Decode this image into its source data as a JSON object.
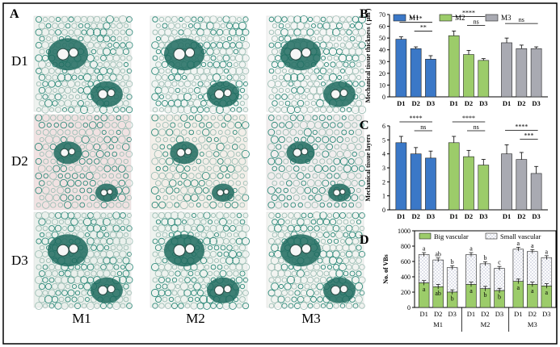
{
  "figure": {
    "panel_letters": [
      "A",
      "B",
      "C",
      "D"
    ],
    "rows": [
      "D1",
      "D2",
      "D3"
    ],
    "cols": [
      "M1",
      "M2",
      "M3"
    ]
  },
  "colors": {
    "M1": "#3b78c7",
    "M2": "#9ccc6a",
    "M3": "#a9aab2",
    "stain_green": "#2f8a7a",
    "stain_dark": "#1f6b5f",
    "bg_pink": "#f3e4e4",
    "bg_white": "#f4f6f4"
  },
  "micrographs": [
    {
      "row": "D1",
      "col": "M1",
      "bg": "#eef2ef",
      "bundle": "large"
    },
    {
      "row": "D1",
      "col": "M2",
      "bg": "#f2f5f3",
      "bundle": "large"
    },
    {
      "row": "D1",
      "col": "M3",
      "bg": "#f5f6f5",
      "bundle": "large"
    },
    {
      "row": "D2",
      "col": "M1",
      "bg": "#f1e2e2",
      "bundle": "small"
    },
    {
      "row": "D2",
      "col": "M2",
      "bg": "#f3efe9",
      "bundle": "small"
    },
    {
      "row": "D2",
      "col": "M3",
      "bg": "#f1eeee",
      "bundle": "small"
    },
    {
      "row": "D3",
      "col": "M1",
      "bg": "#eaf0ec",
      "bundle": "large"
    },
    {
      "row": "D3",
      "col": "M2",
      "bg": "#eef3ef",
      "bundle": "large"
    },
    {
      "row": "D3",
      "col": "M3",
      "bg": "#f2f4f1",
      "bundle": "large"
    }
  ],
  "chart_data": [
    {
      "panel": "B",
      "type": "bar",
      "ylabel": "Mechanical tissue thickness ( μm )",
      "ylim": [
        0,
        70
      ],
      "yticks": [
        0,
        10,
        20,
        30,
        40,
        50,
        60,
        70
      ],
      "legend": [
        "M1",
        "M2",
        "M3"
      ],
      "legend_position": "top",
      "groups": [
        {
          "name": "M1",
          "categories": [
            "D1",
            "D2",
            "D3"
          ],
          "values": [
            49,
            41,
            32
          ],
          "errors": [
            2,
            1.5,
            3
          ]
        },
        {
          "name": "M2",
          "categories": [
            "D1",
            "D2",
            "D3"
          ],
          "values": [
            52,
            36,
            31
          ],
          "errors": [
            4,
            3.5,
            1.5
          ]
        },
        {
          "name": "M3",
          "categories": [
            "D1",
            "D2",
            "D3"
          ],
          "values": [
            46,
            41,
            41
          ],
          "errors": [
            4,
            3,
            1.5
          ]
        }
      ],
      "significance": [
        {
          "group": "M1",
          "from": 0,
          "to": 2,
          "label": "****"
        },
        {
          "group": "M1",
          "from": 1,
          "to": 2,
          "label": "**"
        },
        {
          "group": "M2",
          "from": 0,
          "to": 2,
          "label": "****"
        },
        {
          "group": "M2",
          "from": 1,
          "to": 2,
          "label": "ns"
        },
        {
          "group": "M3",
          "from": 0,
          "to": 2,
          "label": "ns"
        }
      ]
    },
    {
      "panel": "C",
      "type": "bar",
      "ylabel": "Mechanical tissue layers",
      "ylim": [
        0,
        6
      ],
      "yticks": [
        0,
        1,
        2,
        3,
        4,
        5,
        6
      ],
      "groups": [
        {
          "name": "M1",
          "categories": [
            "D1",
            "D2",
            "D3"
          ],
          "values": [
            4.8,
            4.0,
            3.7
          ],
          "errors": [
            0.45,
            0.45,
            0.5
          ]
        },
        {
          "name": "M2",
          "categories": [
            "D1",
            "D2",
            "D3"
          ],
          "values": [
            4.8,
            3.8,
            3.2
          ],
          "errors": [
            0.45,
            0.45,
            0.4
          ]
        },
        {
          "name": "M3",
          "categories": [
            "D1",
            "D2",
            "D3"
          ],
          "values": [
            4.0,
            3.6,
            2.6
          ],
          "errors": [
            0.65,
            0.5,
            0.5
          ]
        }
      ],
      "significance": [
        {
          "group": "M1",
          "from": 0,
          "to": 2,
          "label": "****"
        },
        {
          "group": "M1",
          "from": 1,
          "to": 2,
          "label": "ns"
        },
        {
          "group": "M2",
          "from": 0,
          "to": 2,
          "label": "****"
        },
        {
          "group": "M2",
          "from": 1,
          "to": 2,
          "label": "ns"
        },
        {
          "group": "M3",
          "from": 0,
          "to": 2,
          "label": "****"
        },
        {
          "group": "M3",
          "from": 1,
          "to": 2,
          "label": "***"
        }
      ]
    },
    {
      "panel": "D",
      "type": "bar",
      "stacked": true,
      "ylabel": "No. of VBs",
      "ylim": [
        0,
        1000
      ],
      "yticks": [
        0,
        200,
        400,
        600,
        800,
        1000
      ],
      "legend": [
        "Big vascular",
        "Small vascular"
      ],
      "legend_position": "top",
      "groups": [
        {
          "name": "M1",
          "categories": [
            "D1",
            "D2",
            "D3"
          ],
          "big": [
            320,
            270,
            200
          ],
          "total": [
            690,
            620,
            520
          ],
          "big_letters": [
            "a",
            "ab",
            "b"
          ],
          "total_letters": [
            "a",
            "ab",
            "b"
          ]
        },
        {
          "name": "M2",
          "categories": [
            "D1",
            "D2",
            "D3"
          ],
          "big": [
            300,
            245,
            220
          ],
          "total": [
            690,
            570,
            510
          ],
          "big_letters": [
            "a",
            "b",
            "b"
          ],
          "total_letters": [
            "a",
            "b",
            "c"
          ]
        },
        {
          "name": "M3",
          "categories": [
            "D1",
            "D2",
            "D3"
          ],
          "big": [
            340,
            300,
            280
          ],
          "total": [
            760,
            730,
            650
          ],
          "big_letters": [
            "a",
            "a",
            "a"
          ],
          "total_letters": [
            "a",
            "a",
            "a"
          ]
        }
      ]
    }
  ]
}
